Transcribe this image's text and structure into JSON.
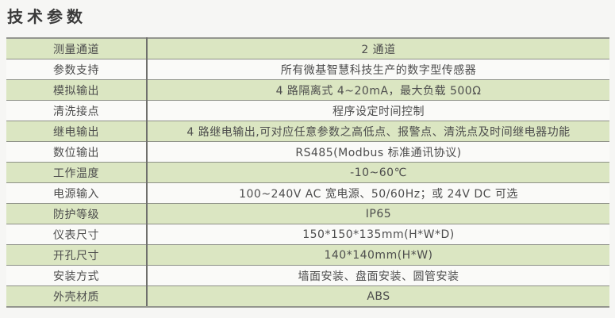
{
  "page": {
    "title": "技术参数"
  },
  "colors": {
    "page_background": "#f6f6f4",
    "row_green": "#dbe6c2",
    "row_white": "#fafaf8",
    "rule_line": "#8d9087",
    "column_divider": "#6f6f6c",
    "text": "#4d4d4d",
    "title_text": "#3a3a3a"
  },
  "table": {
    "rows": [
      {
        "label": "测量通道",
        "value": "2 通道"
      },
      {
        "label": "参数支持",
        "value": "所有微基智慧科技生产的数字型传感器"
      },
      {
        "label": "模拟输出",
        "value": "4 路隔离式 4~20mA，最大负载 500Ω"
      },
      {
        "label": "清洗接点",
        "value": "程序设定时间控制"
      },
      {
        "label": "继电输出",
        "value": "4 路继电输出,可对应任意参数之高低点、报警点、清洗点及时间继电器功能"
      },
      {
        "label": "数位输出",
        "value": "RS485(Modbus 标准通讯协议)"
      },
      {
        "label": "工作温度",
        "value": "-10~60℃"
      },
      {
        "label": "电源输入",
        "value": "100~240V AC 宽电源、50/60Hz；或 24V DC 可选"
      },
      {
        "label": "防护等级",
        "value": "IP65"
      },
      {
        "label": "仪表尺寸",
        "value": "150*150*135mm(H*W*D)"
      },
      {
        "label": "开孔尺寸",
        "value": "140*140mm(H*W)"
      },
      {
        "label": "安装方式",
        "value": "墙面安装、盘面安装、圆管安装"
      },
      {
        "label": "外壳材质",
        "value": "ABS"
      }
    ]
  }
}
